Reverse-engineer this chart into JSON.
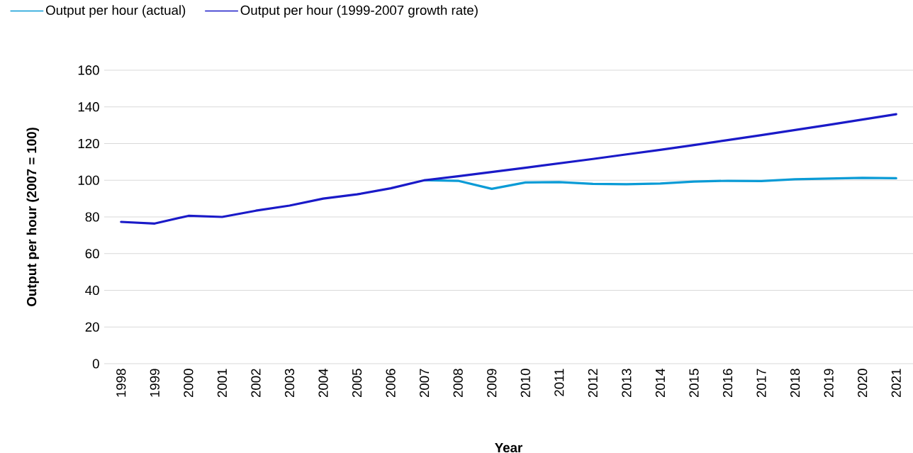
{
  "chart_data": {
    "type": "line",
    "xlabel": "Year",
    "ylabel": "Output per hour (2007 = 100)",
    "categories": [
      "1998",
      "1999",
      "2000",
      "2001",
      "2002",
      "2003",
      "2004",
      "2005",
      "2006",
      "2007",
      "2008",
      "2009",
      "2010",
      "2011",
      "2012",
      "2013",
      "2014",
      "2015",
      "2016",
      "2017",
      "2018",
      "2019",
      "2020",
      "2021"
    ],
    "series": [
      {
        "name": "Output per hour (actual)",
        "color": "#0a9bd6",
        "values": [
          null,
          null,
          null,
          null,
          null,
          null,
          null,
          null,
          null,
          100.0,
          99.7,
          95.3,
          98.8,
          99.0,
          98.0,
          97.8,
          98.2,
          99.3,
          99.7,
          99.6,
          100.5,
          100.9,
          101.3,
          101.1
        ]
      },
      {
        "name": "Output per hour (1999-2007 growth rate)",
        "color": "#1a1ac8",
        "values": [
          77.3,
          76.4,
          80.6,
          80.0,
          83.4,
          86.2,
          90.0,
          92.3,
          95.6,
          100.0,
          102.2,
          104.5,
          106.8,
          109.2,
          111.6,
          114.1,
          116.6,
          119.2,
          121.9,
          124.6,
          127.4,
          130.2,
          133.1,
          136.0
        ]
      }
    ],
    "ylim": [
      0,
      160
    ],
    "yticks": [
      0,
      20,
      40,
      60,
      80,
      100,
      120,
      140,
      160
    ],
    "grid": "y",
    "legend": "top left",
    "line_style": "solid",
    "marker": "none"
  }
}
